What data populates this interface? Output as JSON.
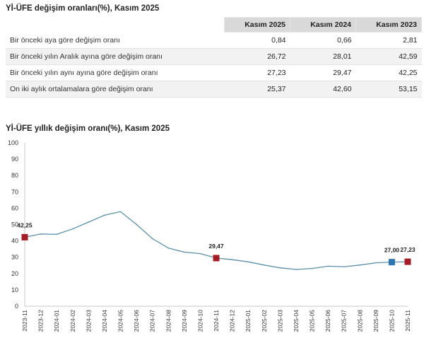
{
  "table": {
    "title": "Yİ-ÜFE değişim oranları(%), Kasım 2025",
    "headers": [
      "",
      "Kasım 2025",
      "Kasım 2024",
      "Kasım 2023"
    ],
    "rows": [
      {
        "label": "Bir önceki aya göre değişim oranı",
        "values": [
          "0,84",
          "0,66",
          "2,81"
        ]
      },
      {
        "label": "Bir önceki yılın Aralık ayına göre değişim oranı",
        "values": [
          "26,72",
          "28,01",
          "42,59"
        ]
      },
      {
        "label": "Bir önceki yılın aynı ayına göre değişim oranı",
        "values": [
          "27,23",
          "29,47",
          "42,25"
        ]
      },
      {
        "label": "On iki aylık ortalamalara göre değişim oranı",
        "values": [
          "25,37",
          "42,60",
          "53,15"
        ]
      }
    ]
  },
  "chart_data": {
    "type": "line",
    "title": "Yİ-ÜFE yıllık değişim oranı(%), Kasım 2025",
    "xlabel": "",
    "ylabel": "",
    "ylim": [
      0,
      100
    ],
    "yticks": [
      0,
      10,
      20,
      30,
      40,
      50,
      60,
      70,
      80,
      90,
      100
    ],
    "grid": false,
    "categories": [
      "2023-11",
      "2023-12",
      "2024-01",
      "2024-02",
      "2024-03",
      "2024-04",
      "2024-05",
      "2024-06",
      "2024-07",
      "2024-08",
      "2024-09",
      "2024-10",
      "2024-11",
      "2024-12",
      "2025-01",
      "2025-02",
      "2025-03",
      "2025-04",
      "2025-05",
      "2025-06",
      "2025-07",
      "2025-08",
      "2025-09",
      "2025-10",
      "2025-11"
    ],
    "series": [
      {
        "values": [
          42.25,
          44.2,
          44.0,
          47.3,
          51.5,
          55.7,
          57.9,
          50.1,
          41.4,
          35.6,
          33.1,
          32.2,
          29.47,
          28.5,
          27.2,
          25.2,
          23.5,
          22.5,
          23.1,
          24.5,
          24.2,
          25.2,
          26.6,
          27.0,
          27.23
        ],
        "color": "#5b8fa8"
      }
    ],
    "markers": [
      {
        "index": 0,
        "label": "42,25",
        "color": "#a51c24"
      },
      {
        "index": 12,
        "label": "29,47",
        "color": "#a51c24"
      },
      {
        "index": 23,
        "label": "27,00",
        "color": "#2e75b6"
      },
      {
        "index": 24,
        "label": "27,23",
        "color": "#a51c24"
      }
    ]
  }
}
